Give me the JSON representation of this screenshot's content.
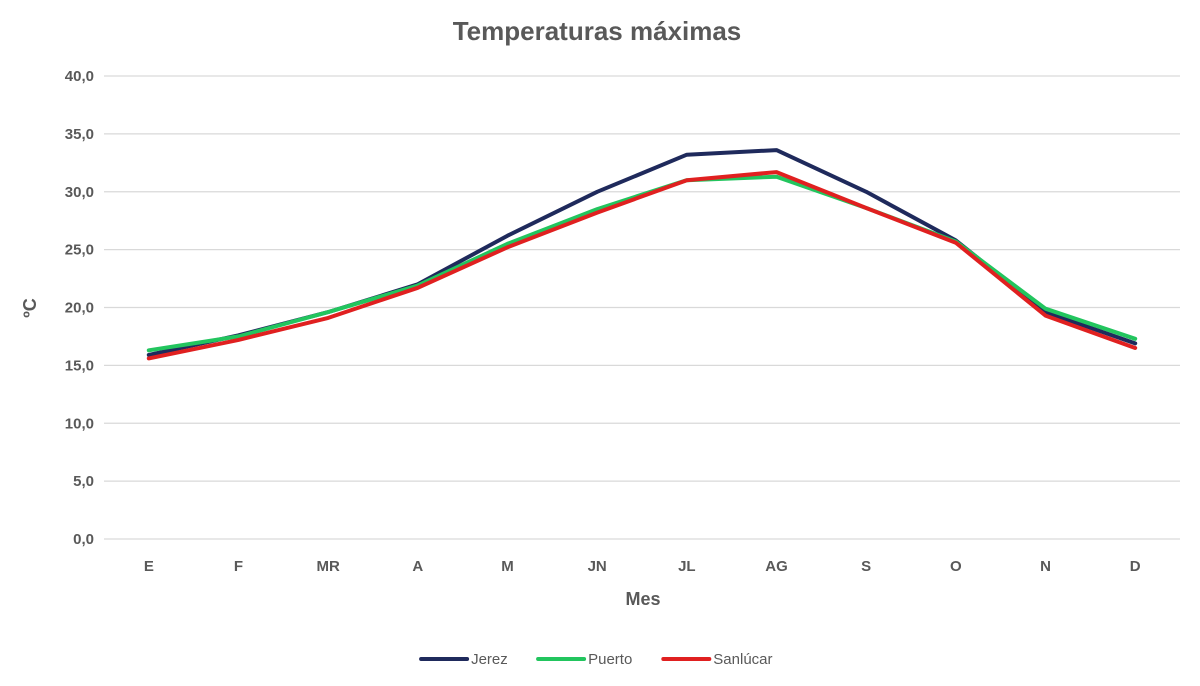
{
  "chart_data": {
    "type": "line",
    "title": "Temperaturas máximas",
    "xlabel": "Mes",
    "ylabel": "ºC",
    "categories": [
      "E",
      "F",
      "MR",
      "A",
      "M",
      "JN",
      "JL",
      "AG",
      "S",
      "O",
      "N",
      "D"
    ],
    "ylim": [
      0,
      40
    ],
    "yticks": [
      "0,0",
      "5,0",
      "10,0",
      "15,0",
      "20,0",
      "25,0",
      "30,0",
      "35,0",
      "40,0"
    ],
    "grid": true,
    "legend_position": "bottom",
    "series": [
      {
        "name": "Jerez",
        "color": "#1f2a5c",
        "values": [
          15.9,
          17.6,
          19.6,
          22.0,
          26.2,
          30.0,
          33.2,
          33.6,
          30.0,
          25.8,
          19.6,
          16.9
        ]
      },
      {
        "name": "Puerto",
        "color": "#22c55e",
        "values": [
          16.3,
          17.5,
          19.6,
          21.9,
          25.5,
          28.5,
          31.0,
          31.3,
          28.6,
          25.7,
          19.9,
          17.3
        ]
      },
      {
        "name": "Sanlúcar",
        "color": "#e02020",
        "values": [
          15.6,
          17.2,
          19.1,
          21.7,
          25.2,
          28.2,
          31.0,
          31.7,
          28.6,
          25.6,
          19.3,
          16.5
        ]
      }
    ]
  }
}
